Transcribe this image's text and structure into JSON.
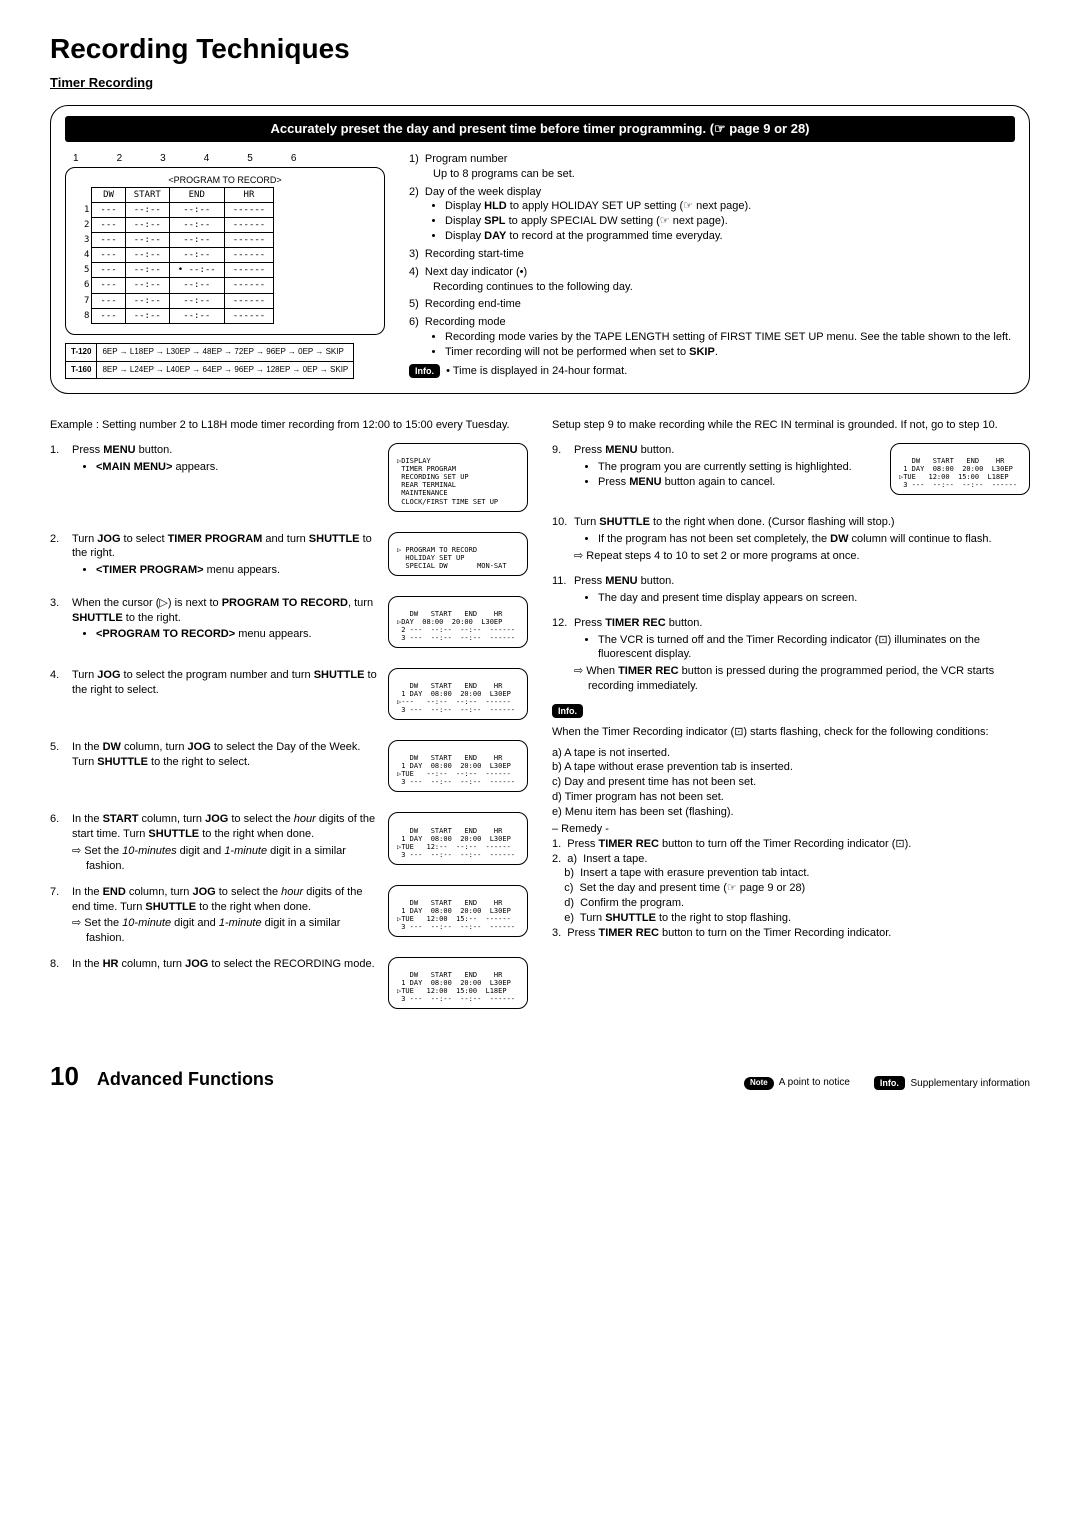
{
  "title": "Recording Techniques",
  "subtitle": "Timer Recording",
  "banner": "Accurately preset the day and present time before timer programming. (☞ page 9 or 28)",
  "col_nums": [
    "1",
    "2",
    "3",
    "4",
    "5",
    "6"
  ],
  "screen": {
    "title": "<PROGRAM TO RECORD>",
    "headers": [
      "DW",
      "START",
      "END",
      "HR"
    ],
    "rows": [
      [
        "1",
        "---",
        "--:--",
        "--:--",
        "------"
      ],
      [
        "2",
        "---",
        "--:--",
        "--:--",
        "------"
      ],
      [
        "3",
        "---",
        "--:--",
        "--:--",
        "------"
      ],
      [
        "4",
        "---",
        "--:--",
        "--:--",
        "------"
      ],
      [
        "5",
        "---",
        "--:--",
        "• --:--",
        "------"
      ],
      [
        "6",
        "---",
        "--:--",
        "--:--",
        "------"
      ],
      [
        "7",
        "---",
        "--:--",
        "--:--",
        "------"
      ],
      [
        "8",
        "---",
        "--:--",
        "--:--",
        "------"
      ]
    ]
  },
  "modes": {
    "rows": [
      [
        "T-120",
        "6EP → L18EP → L30EP → 48EP → 72EP → 96EP → 0EP → SKIP"
      ],
      [
        "T-160",
        "8EP → L24EP → L40EP → 64EP → 96EP → 128EP → 0EP → SKIP"
      ]
    ]
  },
  "legend": {
    "items": [
      {
        "n": "1)",
        "t": "Program number",
        "sub": [
          "Up to 8 programs can be set."
        ]
      },
      {
        "n": "2)",
        "t": "Day of the week display",
        "bul": [
          "Display <b>HLD</b> to apply HOLIDAY SET UP setting (☞ next page).",
          "Display <b>SPL</b> to apply SPECIAL DW setting (☞ next page).",
          "Display <b>DAY</b> to record at the programmed time everyday."
        ]
      },
      {
        "n": "3)",
        "t": "Recording start-time"
      },
      {
        "n": "4)",
        "t": "Next day indicator (•)",
        "sub": [
          "Recording continues to the following day."
        ]
      },
      {
        "n": "5)",
        "t": "Recording end-time"
      },
      {
        "n": "6)",
        "t": "Recording mode",
        "bul": [
          "Recording mode varies by the TAPE LENGTH setting of FIRST TIME SET UP menu.  See the table shown to the left.",
          "Timer recording will not be performed when set to <b>SKIP</b>."
        ]
      }
    ],
    "info": "Time is displayed in 24-hour format."
  },
  "example": "Example : Setting number 2 to L18H mode timer recording from 12:00 to 15:00 every Tuesday.",
  "setup9": "Setup step 9 to make recording while the REC IN terminal is grounded.  If not, go to step 10.",
  "steps_left": [
    {
      "n": "1.",
      "t": "Press <b>MENU</b> button.",
      "sub": [
        "<b>&lt;MAIN MENU&gt;</b> appears."
      ],
      "scr": "<MAIN MENU>\n▷DISPLAY\n TIMER PROGRAM\n RECORDING SET UP\n REAR TERMINAL\n MAINTENANCE\n CLOCK/FIRST TIME SET UP"
    },
    {
      "n": "2.",
      "t": "Turn <b>JOG</b> to select <b>TIMER PROGRAM</b> and turn <b>SHUTTLE</b> to the right.",
      "sub": [
        "<b>&lt;TIMER PROGRAM&gt;</b> menu appears."
      ],
      "scr": "<TIMER PROGRAM>\n▷ PROGRAM TO RECORD\n  HOLIDAY SET UP\n  SPECIAL DW       MON-SAT"
    },
    {
      "n": "3.",
      "t": "When the cursor (▷) is next to <b>PROGRAM TO RECORD</b>, turn <b>SHUTTLE</b> to the right.",
      "sub": [
        "<b>&lt;PROGRAM TO RECORD&gt;</b> menu appears."
      ],
      "scr": " <PROGRAM TO RECORD>\n   DW   START   END    HR\n▷DAY  08:00  20:00  L30EP\n 2 ---  --:--  --:--  ------\n 3 ---  --:--  --:--  ------"
    },
    {
      "n": "4.",
      "t": "Turn <b>JOG</b> to select the program number and turn <b>SHUTTLE</b> to the right to select.",
      "scr": " <PROGRAM TO RECORD>\n   DW   START   END    HR\n 1 DAY  08:00  20:00  L30EP\n▷---   --:--  --:--  ------\n 3 ---  --:--  --:--  ------"
    },
    {
      "n": "5.",
      "t": "In the <b>DW</b> column, turn <b>JOG</b> to select the Day of the Week. Turn <b>SHUTTLE</b> to the right to select.",
      "scr": " <PROGRAM TO RECORD>\n   DW   START   END    HR\n 1 DAY  08:00  20:00  L30EP\n▷TUE   --:--  --:--  ------\n 3 ---  --:--  --:--  ------"
    },
    {
      "n": "6.",
      "t": "In the <b>START</b> column, turn <b>JOG</b> to select the <i>hour</i> digits of the start time. Turn <b>SHUTTLE</b> to the right when done.",
      "note": "⇨ Set the <i>10-minutes</i> digit and <i>1-minute</i> digit in a similar fashion.",
      "scr": " <PROGRAM TO RECORD>\n   DW   START   END    HR\n 1 DAY  08:00  20:00  L30EP\n▷TUE   12:--  --:--  ------\n 3 ---  --:--  --:--  ------"
    },
    {
      "n": "7.",
      "t": "In the <b>END</b> column, turn <b>JOG</b> to select the <i>hour</i> digits of the end time. Turn <b>SHUTTLE</b> to the right when done.",
      "note": "⇨ Set the <i>10-minute</i> digit and <i>1-minute</i> digit in a similar fashion.",
      "scr": " <PROGRAM TO RECORD>\n   DW   START   END    HR\n 1 DAY  08:00  20:00  L30EP\n▷TUE   12:00  15:--  ------\n 3 ---  --:--  --:--  ------"
    },
    {
      "n": "8.",
      "t": "In the <b>HR</b> column, turn <b>JOG</b> to select the RECORDING mode.",
      "scr": " <PROGRAM TO RECORD>\n   DW   START   END    HR\n 1 DAY  08:00  20:00  L30EP\n▷TUE   12:00  15:00  L18EP\n 3 ---  --:--  --:--  ------"
    }
  ],
  "steps_right": [
    {
      "n": "9.",
      "t": "Press <b>MENU</b> button.",
      "sub": [
        "The program you are currently setting is highlighted.",
        "Press <b>MENU</b> button again to cancel."
      ],
      "scr": " <PROGRAM TO RECORD>\n   DW   START   END    HR\n 1 DAY  08:00  20:00  L30EP\n▷TUE   12:00  15:00  L18EP\n 3 ---  --:--  --:--  ------"
    },
    {
      "n": "10.",
      "t": "Turn <b>SHUTTLE</b> to the right when done. (Cursor flashing will stop.)",
      "sub": [
        "If the program has not been set completely, the <b>DW</b> column will continue to flash."
      ],
      "note": "⇨ Repeat steps 4 to 10 to set 2 or more programs at once."
    },
    {
      "n": "11.",
      "t": "Press <b>MENU</b> button.",
      "sub": [
        "The day and present time display appears on screen."
      ]
    },
    {
      "n": "12.",
      "t": "Press <b>TIMER REC</b> button.",
      "sub": [
        "The VCR is turned off and the Timer Recording indicator (⊡) illuminates on the fluorescent display."
      ],
      "note": "⇨ When <b>TIMER REC</b> button is pressed during the programmed period, the VCR starts recording immediately."
    }
  ],
  "info2_intro": "When the Timer Recording indicator (⊡) starts flashing, check for the following conditions:",
  "conditions": [
    "a)  A tape is not inserted.",
    "b)  A tape without erase prevention tab is inserted.",
    "c)  Day and present time has not been set.",
    "d)  Timer program has not been set.",
    "e)  Menu item has been set (flashing)."
  ],
  "remedy_label": "– Remedy -",
  "remedies": [
    "1.  Press <b>TIMER REC</b> button to turn off the Timer Recording indicator (⊡).",
    "2.  a)  Insert a tape.",
    "    b)  Insert a tape with erasure prevention tab intact.",
    "    c)  Set the day and present time (☞ page 9 or 28)",
    "    d)  Confirm the program.",
    "    e)  Turn <b>SHUTTLE</b> to the right to stop flashing.",
    "3.  Press <b>TIMER REC</b> button to turn on the Timer Recording indicator."
  ],
  "footer": {
    "page": "10",
    "section": "Advanced Functions",
    "note_label": "Note",
    "note_text": "A point to notice",
    "info_label": "Info.",
    "info_text": "Supplementary information"
  }
}
